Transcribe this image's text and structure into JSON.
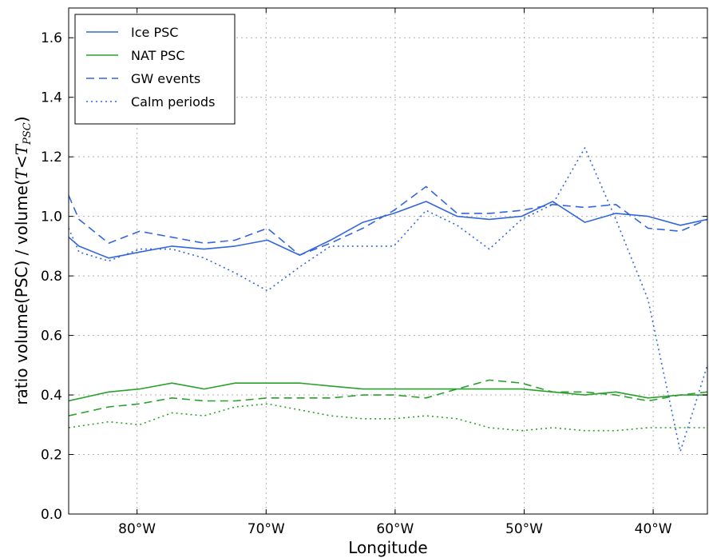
{
  "chart_data": {
    "type": "line",
    "title": "",
    "xlabel": "Longitude",
    "ylabel": "ratio volume(PSC) / volume(T<T_PSC)",
    "ylabel_parts": {
      "prefix": "ratio volume(PSC) / volume(",
      "T": "T",
      "lt": "<",
      "Tsub": "T",
      "sub": "PSC",
      "suffix": ")"
    },
    "xlim": [
      -85.3,
      -35.8
    ],
    "ylim": [
      0.0,
      1.7
    ],
    "x_ticks": [
      -80,
      -70,
      -60,
      -50,
      -40
    ],
    "x_tick_labels": [
      "80°W",
      "70°W",
      "60°W",
      "50°W",
      "40°W"
    ],
    "y_ticks": [
      0.0,
      0.2,
      0.4,
      0.6,
      0.8,
      1.0,
      1.2,
      1.4,
      1.6
    ],
    "y_tick_labels": [
      "0.0",
      "0.2",
      "0.4",
      "0.6",
      "0.8",
      "1.0",
      "1.2",
      "1.4",
      "1.6"
    ],
    "grid": true,
    "legend_position": "top-left",
    "series": [
      {
        "name": "Ice PSC",
        "color": "#3366dd",
        "style": "solid",
        "x": [
          -85.3,
          -84.5,
          -82.2,
          -79.8,
          -77.3,
          -74.8,
          -72.4,
          -69.9,
          -67.4,
          -65.0,
          -62.5,
          -60.1,
          -57.6,
          -55.2,
          -52.7,
          -50.2,
          -47.8,
          -45.3,
          -42.9,
          -40.4,
          -37.9,
          -35.8
        ],
        "y": [
          0.93,
          0.9,
          0.86,
          0.88,
          0.9,
          0.89,
          0.9,
          0.92,
          0.87,
          0.92,
          0.98,
          1.01,
          1.05,
          1.0,
          0.99,
          1.0,
          1.05,
          0.98,
          1.01,
          1.0,
          0.97,
          0.99
        ]
      },
      {
        "name": "NAT PSC",
        "color": "#2ca02c",
        "style": "solid",
        "x": [
          -85.3,
          -82.2,
          -79.8,
          -77.3,
          -74.8,
          -72.4,
          -69.9,
          -67.4,
          -65.0,
          -62.5,
          -60.1,
          -57.6,
          -55.2,
          -52.7,
          -50.2,
          -47.8,
          -45.3,
          -42.9,
          -40.4,
          -37.9,
          -35.8
        ],
        "y": [
          0.38,
          0.41,
          0.42,
          0.44,
          0.42,
          0.44,
          0.44,
          0.44,
          0.43,
          0.42,
          0.42,
          0.42,
          0.42,
          0.42,
          0.42,
          0.41,
          0.4,
          0.41,
          0.39,
          0.4,
          0.4
        ]
      },
      {
        "name": "GW events",
        "color": "#3366dd",
        "style": "dashed",
        "x": [
          -85.3,
          -84.5,
          -82.2,
          -79.8,
          -77.3,
          -74.8,
          -72.4,
          -69.9,
          -67.4,
          -65.0,
          -62.5,
          -60.1,
          -57.6,
          -55.2,
          -52.7,
          -50.2,
          -47.8,
          -45.3,
          -42.9,
          -40.4,
          -37.9,
          -35.8
        ],
        "y": [
          1.07,
          0.99,
          0.91,
          0.95,
          0.93,
          0.91,
          0.92,
          0.96,
          0.87,
          0.91,
          0.96,
          1.02,
          1.1,
          1.01,
          1.01,
          1.02,
          1.04,
          1.03,
          1.04,
          0.96,
          0.95,
          0.99
        ]
      },
      {
        "name": "",
        "color": "#2ca02c",
        "style": "dashed",
        "x": [
          -85.3,
          -82.2,
          -79.8,
          -77.3,
          -74.8,
          -72.4,
          -69.9,
          -67.4,
          -65.0,
          -62.5,
          -60.1,
          -57.6,
          -55.2,
          -52.7,
          -50.2,
          -47.8,
          -45.3,
          -42.9,
          -40.4,
          -37.9,
          -35.8
        ],
        "y": [
          0.33,
          0.36,
          0.37,
          0.39,
          0.38,
          0.38,
          0.39,
          0.39,
          0.39,
          0.4,
          0.4,
          0.39,
          0.42,
          0.45,
          0.44,
          0.41,
          0.41,
          0.4,
          0.38,
          0.4,
          0.41
        ]
      },
      {
        "name": "Calm periods",
        "color": "#3366dd",
        "style": "dotted",
        "x": [
          -85.3,
          -84.5,
          -82.2,
          -79.8,
          -77.3,
          -74.8,
          -72.4,
          -69.9,
          -67.4,
          -65.0,
          -62.5,
          -60.1,
          -57.6,
          -55.2,
          -52.7,
          -50.2,
          -47.8,
          -45.3,
          -42.9,
          -40.4,
          -37.9,
          -35.8
        ],
        "y": [
          0.96,
          0.88,
          0.85,
          0.89,
          0.89,
          0.86,
          0.81,
          0.75,
          0.83,
          0.9,
          0.9,
          0.9,
          1.02,
          0.97,
          0.89,
          0.99,
          1.04,
          1.23,
          0.99,
          0.72,
          0.21,
          0.5
        ]
      },
      {
        "name": "",
        "color": "#2ca02c",
        "style": "dotted",
        "x": [
          -85.3,
          -82.2,
          -79.8,
          -77.3,
          -74.8,
          -72.4,
          -69.9,
          -67.4,
          -65.0,
          -62.5,
          -60.1,
          -57.6,
          -55.2,
          -52.7,
          -50.2,
          -47.8,
          -45.3,
          -42.9,
          -40.4,
          -37.9,
          -35.8
        ],
        "y": [
          0.29,
          0.31,
          0.3,
          0.34,
          0.33,
          0.36,
          0.37,
          0.35,
          0.33,
          0.32,
          0.32,
          0.33,
          0.32,
          0.29,
          0.28,
          0.29,
          0.28,
          0.28,
          0.29,
          0.29,
          0.29
        ]
      }
    ],
    "legend": [
      {
        "label": "Ice PSC",
        "color": "#3366dd",
        "style": "solid"
      },
      {
        "label": "NAT PSC",
        "color": "#2ca02c",
        "style": "solid"
      },
      {
        "label": "GW events",
        "color": "#3366dd",
        "style": "dashed"
      },
      {
        "label": "Calm periods",
        "color": "#3366dd",
        "style": "dotted"
      }
    ]
  }
}
